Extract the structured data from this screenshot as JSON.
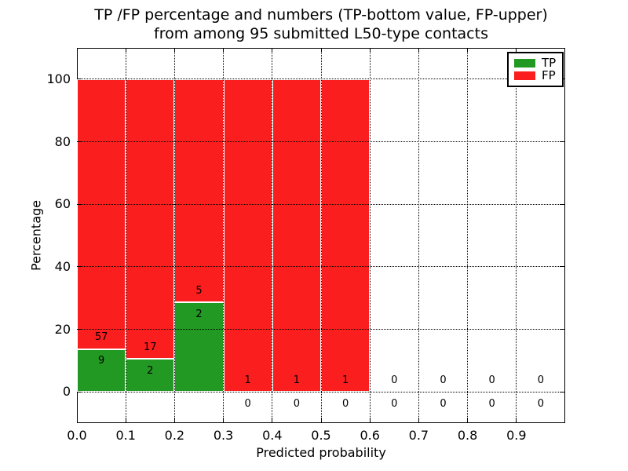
{
  "chart_data": {
    "type": "bar",
    "stacked": true,
    "title_line1": "TP /FP percentage and numbers (TP-bottom value, FP-upper)",
    "title_line2": "from among 95 submitted L50-type contacts",
    "total_submitted": 95,
    "xlabel": "Predicted probability",
    "ylabel": "Percentage",
    "xlim": [
      0.0,
      1.0
    ],
    "ylim": [
      -10,
      110
    ],
    "grid": true,
    "xticks": [
      "0.0",
      "0.1",
      "0.2",
      "0.3",
      "0.4",
      "0.5",
      "0.6",
      "0.7",
      "0.8",
      "0.9"
    ],
    "yticks": [
      0,
      20,
      40,
      60,
      80,
      100
    ],
    "bin_width": 0.1,
    "bin_starts": [
      0.0,
      0.1,
      0.2,
      0.3,
      0.4,
      0.5,
      0.6,
      0.7,
      0.8,
      0.9
    ],
    "series": [
      {
        "name": "TP",
        "color": "#229922",
        "counts": [
          9,
          2,
          2,
          0,
          0,
          0,
          0,
          0,
          0,
          0
        ],
        "pct": [
          13.64,
          10.53,
          28.57,
          0,
          0,
          0,
          0,
          0,
          0,
          0
        ]
      },
      {
        "name": "FP",
        "color": "#fa1e1e",
        "counts": [
          57,
          17,
          5,
          1,
          1,
          1,
          0,
          0,
          0,
          0
        ],
        "pct": [
          86.36,
          89.47,
          71.43,
          100,
          100,
          100,
          0,
          0,
          0,
          0
        ]
      }
    ],
    "legend": {
      "position": "upper right",
      "entries": [
        {
          "label": "TP",
          "color": "#229922"
        },
        {
          "label": "FP",
          "color": "#fa1e1e"
        }
      ]
    }
  }
}
